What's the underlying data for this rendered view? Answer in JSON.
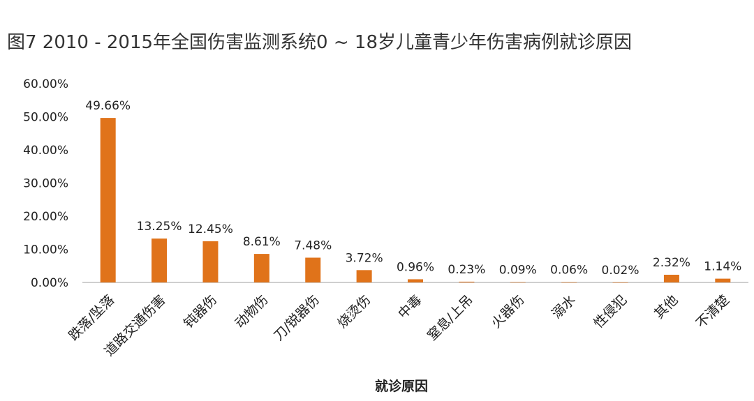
{
  "chart_data": {
    "type": "bar",
    "title": "图7  2010 - 2015年全国伤害监测系统0 ~ 18岁儿童青少年伤害病例就诊原因",
    "xlabel": "就诊原因",
    "ylabel": "",
    "categories": [
      "跌落/坠落",
      "道路交通伤害",
      "钝器伤",
      "动物伤",
      "刀/锐器伤",
      "烧烫伤",
      "中毒",
      "窒息/上吊",
      "火器伤",
      "溺水",
      "性侵犯",
      "其他",
      "不清楚"
    ],
    "values": [
      49.66,
      13.25,
      12.45,
      8.61,
      7.48,
      3.72,
      0.96,
      0.23,
      0.09,
      0.06,
      0.02,
      2.32,
      1.14
    ],
    "data_labels": [
      "49.66%",
      "13.25%",
      "12.45%",
      "8.61%",
      "7.48%",
      "3.72%",
      "0.96%",
      "0.23%",
      "0.09%",
      "0.06%",
      "0.02%",
      "2.32%",
      "1.14%"
    ],
    "ylim": [
      0,
      60
    ],
    "yticks": [
      0,
      10,
      20,
      30,
      40,
      50,
      60
    ],
    "ytick_labels": [
      "0.00%",
      "10.00%",
      "20.00%",
      "30.00%",
      "40.00%",
      "50.00%",
      "60.00%"
    ],
    "grid": false,
    "legend": "none",
    "bar_color": "#E0731A",
    "axis_color": "#bfbfbf"
  }
}
